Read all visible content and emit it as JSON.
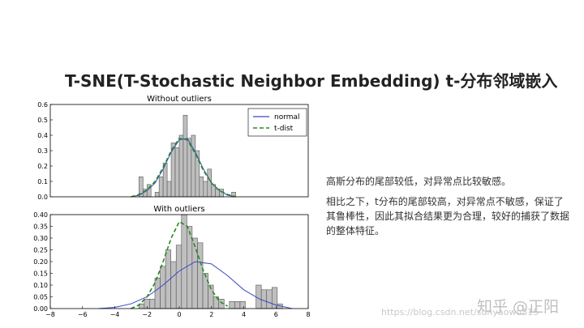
{
  "slide": {
    "title": "T-SNE(T-Stochastic Neighbor Embedding) t-分布邻域嵌入",
    "desc1": "高斯分布的尾部较低，对异常点比较敏感。",
    "desc2": "相比之下，t分布的尾部较高，对异常点不敏感，保证了其鲁棒性，因此其拟合结果更为合理，较好的捕获了数据的整体特征。"
  },
  "watermark": {
    "brand": "知乎 @正阳",
    "url": "https://blog.csdn.net/sunyaowu315"
  },
  "colors": {
    "hist_fill": "#bfbfbf",
    "hist_edge": "#555555",
    "normal": "#3b48c4",
    "tdist": "#228b22"
  },
  "chart_data": [
    {
      "type": "bar",
      "title": "Without outliers",
      "xlim": [
        -8,
        8
      ],
      "ylim": [
        0,
        0.6
      ],
      "yticks": [
        "0.0",
        "0.1",
        "0.2",
        "0.3",
        "0.4",
        "0.5",
        "0.6"
      ],
      "legend": {
        "placement": "top-right",
        "entries": [
          "normal",
          "t-dist"
        ]
      },
      "bin_width": 0.25,
      "bins_start": [
        -2.5,
        -2.25,
        -2.0,
        -1.75,
        -1.5,
        -1.25,
        -1.0,
        -0.75,
        -0.5,
        -0.25,
        0.0,
        0.25,
        0.5,
        0.75,
        1.0,
        1.25,
        1.5,
        1.75,
        2.0,
        2.25,
        2.5,
        2.75,
        3.0,
        3.25
      ],
      "values": [
        0.13,
        0.05,
        0.08,
        0.0,
        0.03,
        0.13,
        0.22,
        0.1,
        0.35,
        0.32,
        0.4,
        0.53,
        0.38,
        0.4,
        0.3,
        0.13,
        0.1,
        0.18,
        0.08,
        0.05,
        0.05,
        0.0,
        0.0,
        0.03
      ],
      "series": [
        {
          "name": "normal",
          "x": [
            -3,
            -2.5,
            -2,
            -1.5,
            -1,
            -0.5,
            0,
            0.5,
            1,
            1.5,
            2,
            2.5,
            3,
            3.5
          ],
          "values": [
            0.0,
            0.01,
            0.04,
            0.09,
            0.18,
            0.29,
            0.37,
            0.38,
            0.29,
            0.18,
            0.09,
            0.04,
            0.01,
            0.0
          ]
        },
        {
          "name": "t-dist",
          "x": [
            -3,
            -2.5,
            -2,
            -1.5,
            -1,
            -0.5,
            0,
            0.5,
            1,
            1.5,
            2,
            2.5,
            3,
            3.5
          ],
          "values": [
            0.0,
            0.015,
            0.045,
            0.1,
            0.19,
            0.3,
            0.38,
            0.37,
            0.28,
            0.17,
            0.09,
            0.04,
            0.015,
            0.0
          ]
        }
      ]
    },
    {
      "type": "bar",
      "title": "With outliers",
      "xlim": [
        -8,
        8
      ],
      "ylim": [
        0,
        0.4
      ],
      "xticks": [
        "−8",
        "−6",
        "−4",
        "−2",
        "0",
        "2",
        "4",
        "6",
        "8"
      ],
      "yticks": [
        "0.00",
        "0.05",
        "0.10",
        "0.15",
        "0.20",
        "0.25",
        "0.30",
        "0.35",
        "0.40"
      ],
      "bin_width": 0.33,
      "bins_start": [
        -2.5,
        -2.17,
        -1.84,
        -1.51,
        -1.18,
        -0.85,
        -0.52,
        -0.19,
        0.14,
        0.47,
        0.8,
        1.13,
        1.46,
        1.79,
        2.12,
        2.45,
        2.78,
        3.11,
        3.44,
        3.77,
        4.1,
        4.43,
        4.76,
        5.09,
        5.42,
        5.75,
        6.08
      ],
      "values": [
        0.02,
        0.04,
        0.04,
        0.13,
        0.18,
        0.25,
        0.2,
        0.27,
        0.4,
        0.35,
        0.3,
        0.28,
        0.15,
        0.1,
        0.05,
        0.04,
        0.0,
        0.03,
        0.03,
        0.03,
        0.0,
        0.0,
        0.1,
        0.08,
        0.08,
        0.09,
        0.02
      ],
      "series": [
        {
          "name": "normal",
          "x": [
            -5,
            -4,
            -3,
            -2,
            -1,
            0,
            1,
            2,
            3,
            4,
            5,
            6,
            7
          ],
          "values": [
            0.0,
            0.005,
            0.02,
            0.05,
            0.1,
            0.16,
            0.2,
            0.19,
            0.14,
            0.08,
            0.04,
            0.015,
            0.0
          ]
        },
        {
          "name": "t-dist",
          "x": [
            -3,
            -2.5,
            -2,
            -1.5,
            -1,
            -0.5,
            0,
            0.5,
            1,
            1.5,
            2,
            2.5,
            3
          ],
          "values": [
            0.0,
            0.015,
            0.05,
            0.11,
            0.2,
            0.3,
            0.37,
            0.35,
            0.26,
            0.16,
            0.08,
            0.03,
            0.01
          ]
        }
      ]
    }
  ]
}
